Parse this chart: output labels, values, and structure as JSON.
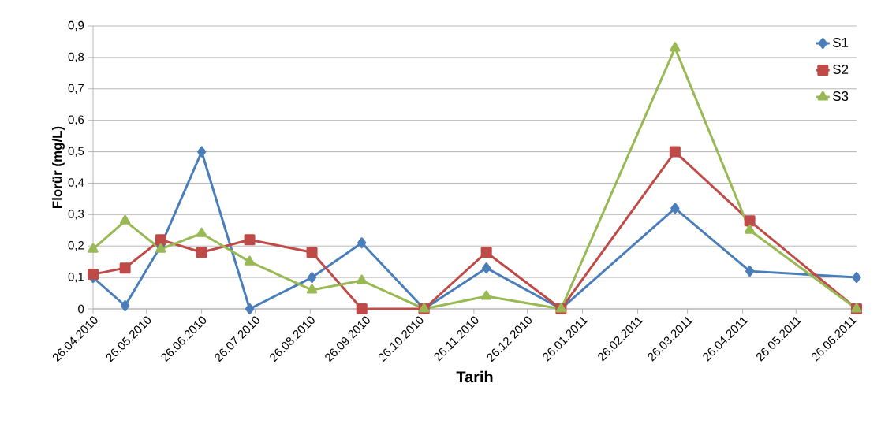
{
  "chart_data": {
    "type": "line",
    "xlabel": "Tarih",
    "ylabel": "Florür (mg/L)",
    "x": [
      "2010-04-26",
      "2010-05-14",
      "2010-06-03",
      "2010-06-26",
      "2010-07-23",
      "2010-08-27",
      "2010-09-24",
      "2010-10-29",
      "2010-12-03",
      "2011-01-14",
      "2011-03-19",
      "2011-04-30",
      "2011-06-29"
    ],
    "series": [
      {
        "name": "S1",
        "color": "#4a7ebb",
        "marker": "diamond",
        "values": [
          0.1,
          0.01,
          0.2,
          0.5,
          0,
          0.1,
          0.21,
          0,
          0.13,
          0,
          0.32,
          0.12,
          0.1
        ]
      },
      {
        "name": "S2",
        "color": "#be4b48",
        "marker": "square",
        "values": [
          0.11,
          0.13,
          0.22,
          0.18,
          0.22,
          0.18,
          0,
          0,
          0.18,
          0,
          0.5,
          0.28,
          0
        ]
      },
      {
        "name": "S3",
        "color": "#98b954",
        "marker": "triangle",
        "values": [
          0.19,
          0.28,
          0.19,
          0.24,
          0.15,
          0.06,
          0.09,
          0,
          0.04,
          0,
          0.83,
          0.25,
          0
        ]
      }
    ],
    "xlim": [
      "2010-04-26",
      "2011-06-29"
    ],
    "xticks": [
      {
        "value": "2010-04-26",
        "label": "26.04.2010"
      },
      {
        "value": "2010-05-26",
        "label": "26.05.2010"
      },
      {
        "value": "2010-06-26",
        "label": "26.06.2010"
      },
      {
        "value": "2010-07-26",
        "label": "26.07.2010"
      },
      {
        "value": "2010-08-26",
        "label": "26.08.2010"
      },
      {
        "value": "2010-09-26",
        "label": "26.09.2010"
      },
      {
        "value": "2010-10-26",
        "label": "26.10.2010"
      },
      {
        "value": "2010-11-26",
        "label": "26.11.2010"
      },
      {
        "value": "2010-12-26",
        "label": "26.12.2010"
      },
      {
        "value": "2011-01-26",
        "label": "26.01.2011"
      },
      {
        "value": "2011-02-26",
        "label": "26.02.2011"
      },
      {
        "value": "2011-03-26",
        "label": "26.03.2011"
      },
      {
        "value": "2011-04-26",
        "label": "26.04.2011"
      },
      {
        "value": "2011-05-26",
        "label": "26.05.2011"
      },
      {
        "value": "2011-06-26",
        "label": "26.06.2011"
      }
    ],
    "ylim": [
      0,
      0.9
    ],
    "yticks": [
      0,
      {
        "value": 0.1,
        "label": "0,1"
      },
      {
        "value": 0.2,
        "label": "0,2"
      },
      {
        "value": 0.3,
        "label": "0,3"
      },
      {
        "value": 0.4,
        "label": "0,4"
      },
      {
        "value": 0.5,
        "label": "0,5"
      },
      {
        "value": 0.6,
        "label": "0,6"
      },
      {
        "value": 0.7,
        "label": "0,7"
      },
      {
        "value": 0.8,
        "label": "0,8"
      },
      {
        "value": 0.9,
        "label": "0,9"
      }
    ],
    "grid": "y",
    "legend": "top right",
    "line_style": "solid"
  }
}
